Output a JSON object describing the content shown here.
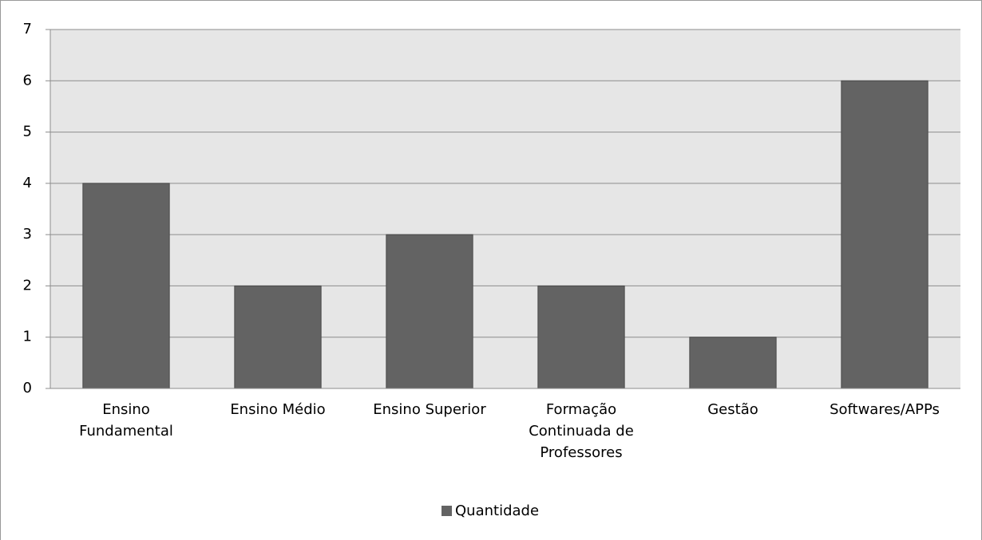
{
  "chart_data": {
    "type": "bar",
    "categories": [
      "Ensino Fundamental",
      "Ensino Médio",
      "Ensino Superior",
      "Formação Continuada de Professores",
      "Gestão",
      "Softwares/APPs"
    ],
    "series": [
      {
        "name": "Quantidade",
        "color": "#636363",
        "values": [
          4,
          2,
          3,
          2,
          1,
          6
        ]
      }
    ],
    "ylim": [
      0,
      7
    ],
    "yticks": [
      0,
      1,
      2,
      3,
      4,
      5,
      6,
      7
    ],
    "grid": true,
    "legend": "bottom"
  }
}
